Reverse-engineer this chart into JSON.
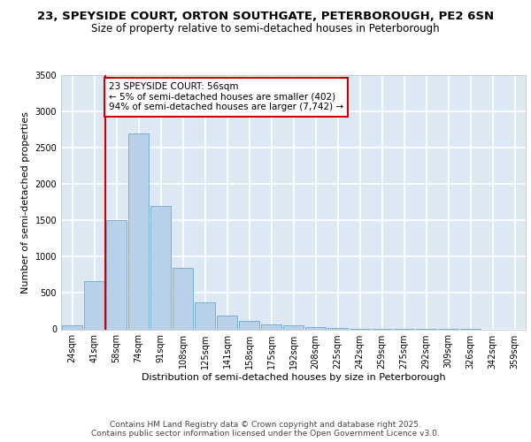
{
  "title_line1": "23, SPEYSIDE COURT, ORTON SOUTHGATE, PETERBOROUGH, PE2 6SN",
  "title_line2": "Size of property relative to semi-detached houses in Peterborough",
  "xlabel": "Distribution of semi-detached houses by size in Peterborough",
  "ylabel": "Number of semi-detached properties",
  "categories": [
    "24sqm",
    "41sqm",
    "58sqm",
    "74sqm",
    "91sqm",
    "108sqm",
    "125sqm",
    "141sqm",
    "158sqm",
    "175sqm",
    "192sqm",
    "208sqm",
    "225sqm",
    "242sqm",
    "259sqm",
    "275sqm",
    "292sqm",
    "309sqm",
    "326sqm",
    "342sqm",
    "359sqm"
  ],
  "values": [
    50,
    660,
    1500,
    2700,
    1700,
    850,
    375,
    190,
    120,
    65,
    50,
    35,
    20,
    10,
    5,
    3,
    2,
    1,
    1,
    0,
    0
  ],
  "bar_color": "#b8d0e8",
  "bar_edge_color": "#6aaad4",
  "vline_color": "#cc0000",
  "annotation_text": "23 SPEYSIDE COURT: 56sqm\n← 5% of semi-detached houses are smaller (402)\n94% of semi-detached houses are larger (7,742) →",
  "annotation_box_color": "white",
  "annotation_box_edge": "#cc0000",
  "ylim": [
    0,
    3500
  ],
  "yticks": [
    0,
    500,
    1000,
    1500,
    2000,
    2500,
    3000,
    3500
  ],
  "bg_color": "#dde8f5",
  "grid_color": "white",
  "footer_text": "Contains HM Land Registry data © Crown copyright and database right 2025.\nContains public sector information licensed under the Open Government Licence v3.0.",
  "title_fontsize": 9.5,
  "subtitle_fontsize": 8.5,
  "axis_label_fontsize": 8,
  "tick_fontsize": 7,
  "annotation_fontsize": 7.5,
  "footer_fontsize": 6.5
}
